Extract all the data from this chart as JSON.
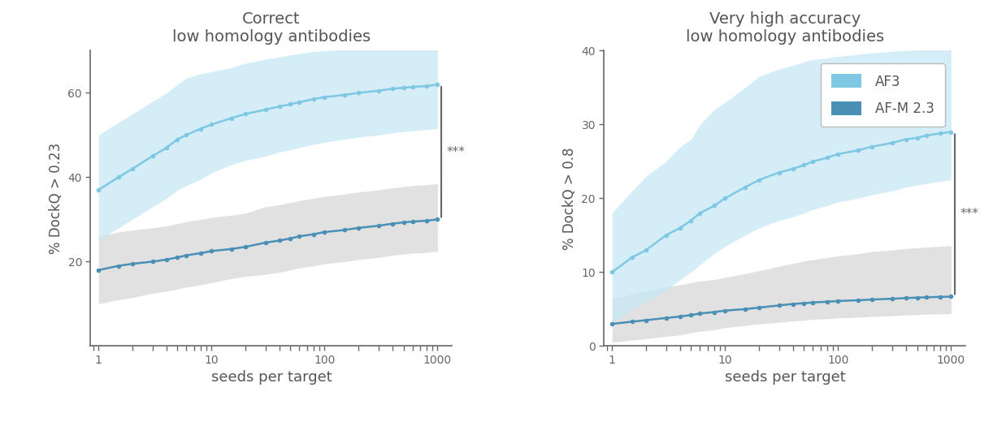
{
  "title1": "Correct\nlow homology antibodies",
  "title2": "Very high accuracy\nlow homology antibodies",
  "ylabel1": "% DockQ > 0.23",
  "ylabel2": "% DockQ > 0.8",
  "xlabel": "seeds per target",
  "seeds": [
    1,
    1.5,
    2,
    3,
    4,
    5,
    6,
    8,
    10,
    15,
    20,
    30,
    40,
    50,
    60,
    80,
    100,
    150,
    200,
    300,
    400,
    500,
    600,
    800,
    1000
  ],
  "af3_mean_1": [
    37,
    40,
    42,
    45,
    47,
    49,
    50,
    51.5,
    52.5,
    54,
    55,
    56,
    56.8,
    57.3,
    57.8,
    58.5,
    59,
    59.5,
    60,
    60.5,
    61,
    61.2,
    61.4,
    61.6,
    62
  ],
  "af3_lo_1": [
    25,
    28,
    30,
    33,
    35,
    37,
    38,
    39.5,
    41,
    43,
    44,
    45,
    46,
    46.5,
    47,
    47.8,
    48.3,
    49,
    49.5,
    50,
    50.5,
    50.8,
    51,
    51.3,
    51.5
  ],
  "af3_hi_1": [
    50,
    53,
    55,
    58,
    60,
    62,
    63.5,
    64.5,
    65,
    66,
    67,
    68,
    68.5,
    69,
    69.3,
    69.8,
    70,
    70.3,
    70.6,
    70.8,
    71,
    71.1,
    71.2,
    71.3,
    71.5
  ],
  "afm_mean_1": [
    18,
    19,
    19.5,
    20,
    20.5,
    21,
    21.5,
    22,
    22.5,
    23,
    23.5,
    24.5,
    25,
    25.5,
    26,
    26.5,
    27,
    27.5,
    28,
    28.5,
    29,
    29.3,
    29.5,
    29.7,
    30
  ],
  "afm_lo_1": [
    10,
    11,
    11.5,
    12.5,
    13,
    13.5,
    14,
    14.5,
    15,
    16,
    16.5,
    17,
    17.5,
    18,
    18.5,
    19,
    19.5,
    20,
    20.5,
    21,
    21.5,
    21.8,
    22,
    22.2,
    22.5
  ],
  "afm_hi_1": [
    26,
    27,
    27.5,
    28,
    28.5,
    29,
    29.5,
    30,
    30.5,
    31,
    31.5,
    33,
    33.5,
    34,
    34.5,
    35,
    35.5,
    36,
    36.5,
    37,
    37.5,
    37.8,
    38,
    38.2,
    38.5
  ],
  "af3_mean_2": [
    10,
    12,
    13,
    15,
    16,
    17,
    18,
    19,
    20,
    21.5,
    22.5,
    23.5,
    24,
    24.5,
    25,
    25.5,
    26,
    26.5,
    27,
    27.5,
    28,
    28.2,
    28.5,
    28.8,
    29
  ],
  "af3_lo_2": [
    3,
    5,
    6,
    7.5,
    9,
    10,
    11,
    12.5,
    13.5,
    15,
    16,
    17,
    17.5,
    18,
    18.5,
    19,
    19.5,
    20,
    20.5,
    21,
    21.5,
    21.8,
    22,
    22.3,
    22.5
  ],
  "af3_hi_2": [
    18,
    21,
    23,
    25,
    27,
    28,
    30,
    32,
    33,
    35,
    36.5,
    37.5,
    38,
    38.5,
    38.8,
    39,
    39.2,
    39.5,
    39.7,
    39.9,
    40,
    40.1,
    40.2,
    40.3,
    40.4
  ],
  "afm_mean_2": [
    3,
    3.3,
    3.5,
    3.8,
    4,
    4.2,
    4.4,
    4.6,
    4.8,
    5,
    5.2,
    5.5,
    5.7,
    5.8,
    5.9,
    6,
    6.1,
    6.2,
    6.3,
    6.4,
    6.5,
    6.55,
    6.6,
    6.65,
    6.7
  ],
  "afm_lo_2": [
    0.5,
    0.8,
    1.0,
    1.3,
    1.5,
    1.8,
    2.0,
    2.2,
    2.5,
    2.8,
    3.0,
    3.2,
    3.4,
    3.5,
    3.6,
    3.7,
    3.8,
    3.9,
    4.0,
    4.1,
    4.2,
    4.25,
    4.3,
    4.35,
    4.4
  ],
  "afm_hi_2": [
    6.5,
    7,
    7.5,
    8,
    8.3,
    8.6,
    8.8,
    9,
    9.3,
    9.8,
    10.2,
    10.8,
    11.2,
    11.5,
    11.7,
    12,
    12.2,
    12.5,
    12.8,
    13.0,
    13.2,
    13.3,
    13.4,
    13.5,
    13.6
  ],
  "ylim1": [
    0,
    70
  ],
  "yticks1": [
    20,
    40,
    60
  ],
  "ylim2": [
    0,
    40
  ],
  "yticks2": [
    0,
    10,
    20,
    30,
    40
  ],
  "color_af3_line": "#7EC8E3",
  "color_af3_fill": "#C8E8F5",
  "color_afm_line": "#4A8FB5",
  "color_afm_fill": "#CACACA",
  "color_text": "#555555",
  "color_axis": "#666666",
  "background_color": "#ffffff",
  "legend_labels": [
    "AF3",
    "AF-M 2.3"
  ]
}
